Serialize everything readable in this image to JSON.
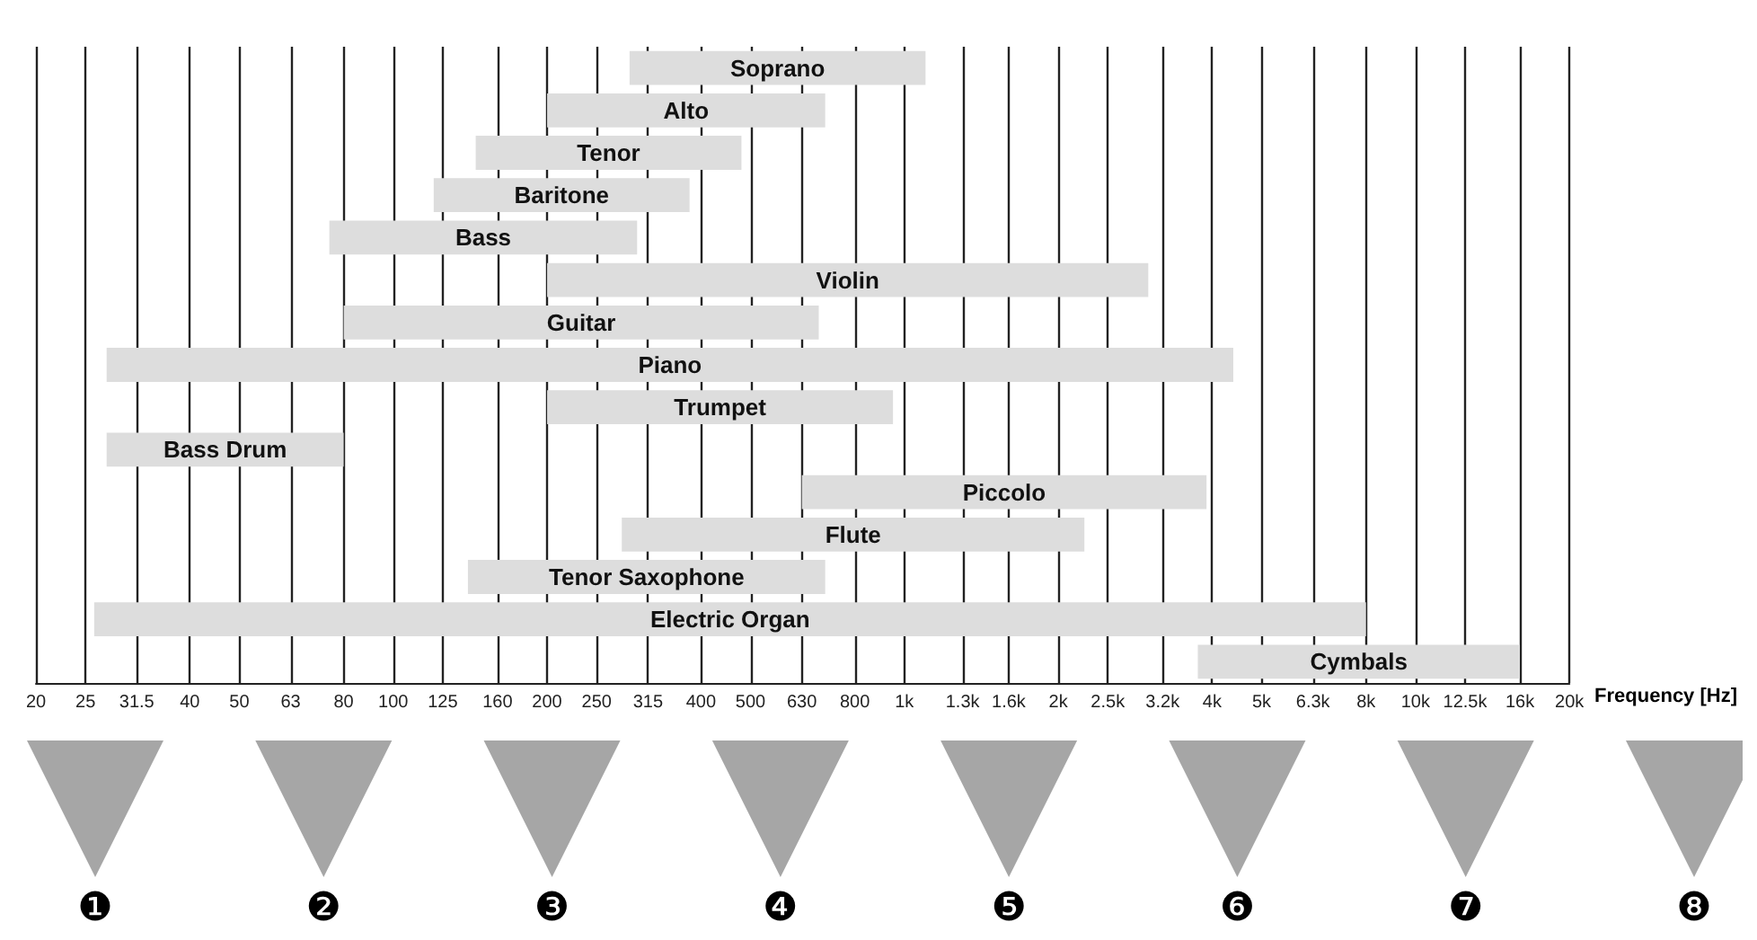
{
  "chart_data": {
    "type": "bar",
    "orientation": "horizontal",
    "log": "x",
    "tick_labels": "x",
    "grid": "x",
    "xlabel": "Frequency [Hz]",
    "color": "#dddddd",
    "categories": [
      "Soprano",
      "Alto",
      "Tenor",
      "Baritone",
      "Bass",
      "Violin",
      "Guitar",
      "Piano",
      "Trumpet",
      "Bass Drum",
      "Piccolo",
      "Flute",
      "Tenor Saxophone",
      "Electric Organ",
      "Cymbals"
    ],
    "base": [
      290,
      200,
      145,
      120,
      75,
      200,
      80,
      27.5,
      200,
      27.5,
      630,
      280,
      140,
      26,
      3750
    ],
    "values": [
      810,
      500,
      335,
      260,
      225,
      2800,
      600,
      4372.5,
      750,
      52.5,
      3270,
      1970,
      560,
      7974,
      12250
    ],
    "xlim": [
      20,
      20000
    ],
    "xticks": [
      20,
      25,
      31.5,
      40,
      50,
      63,
      80,
      100,
      125,
      160,
      200,
      250,
      315,
      400,
      500,
      630,
      800,
      {
        "value": 1000,
        "label": "1k"
      },
      {
        "value": 1300,
        "label": "1.3k"
      },
      {
        "value": 1600,
        "label": "1.6k"
      },
      {
        "value": 2000,
        "label": "2k"
      },
      {
        "value": 2500,
        "label": "2.5k"
      },
      {
        "value": 3200,
        "label": "3.2k"
      },
      {
        "value": 4000,
        "label": "4k"
      },
      {
        "value": 5000,
        "label": "5k"
      },
      {
        "value": 6300,
        "label": "6.3k"
      },
      {
        "value": 8000,
        "label": "8k"
      },
      {
        "value": 10000,
        "label": "10k"
      },
      {
        "value": 12500,
        "label": "12.5k"
      },
      {
        "value": 16000,
        "label": "16k"
      },
      {
        "value": 20000,
        "label": "20k"
      }
    ],
    "annotations": [
      "❶",
      "❷",
      "❸",
      "❹",
      "❺",
      "❻",
      "❼",
      "❽"
    ]
  }
}
